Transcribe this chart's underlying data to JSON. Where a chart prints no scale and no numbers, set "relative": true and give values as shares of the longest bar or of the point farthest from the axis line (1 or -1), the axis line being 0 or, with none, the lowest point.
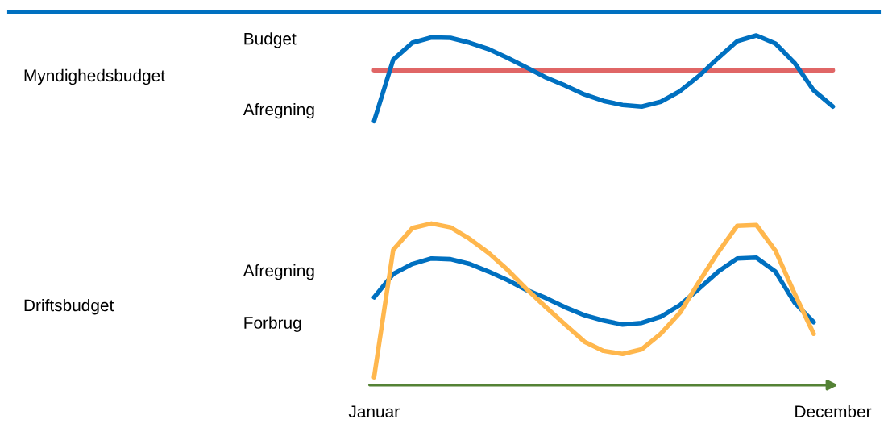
{
  "chart_data": [
    {
      "type": "line",
      "ylabel": "Myndighedsbudget",
      "relative": true,
      "tick_labels": false,
      "legend": false,
      "annotations": [
        "Budget",
        "Afregning"
      ],
      "categories": [
        null,
        null,
        null,
        null,
        null,
        null,
        null,
        null,
        null,
        null,
        null,
        null,
        null,
        null,
        null,
        null,
        null,
        null,
        null,
        null,
        null,
        null,
        null,
        null,
        null
      ],
      "series": [
        {
          "color": "#e06666",
          "values": [
            0.594,
            0.594,
            0.594,
            0.594,
            0.594,
            0.594,
            0.594,
            0.594,
            0.594,
            0.594,
            0.594,
            0.594,
            0.594,
            0.594,
            0.594,
            0.594,
            0.594,
            0.594,
            0.594,
            0.594,
            0.594,
            0.594,
            0.594,
            0.594,
            0.594
          ]
        },
        {
          "color": "#0070c0",
          "values": [
            0,
            0.717,
            0.915,
            0.976,
            0.972,
            0.915,
            0.84,
            0.736,
            0.623,
            0.509,
            0.415,
            0.311,
            0.236,
            0.189,
            0.17,
            0.226,
            0.349,
            0.528,
            0.736,
            0.934,
            1.0,
            0.906,
            0.679,
            0.358,
            0.17
          ]
        }
      ]
    },
    {
      "type": "line",
      "ylabel": "Driftsbudget",
      "relative": true,
      "tick_labels": "x",
      "legend": false,
      "annotations": [
        "Afregning",
        "Forbrug"
      ],
      "categories": [
        "Januar",
        null,
        null,
        null,
        null,
        null,
        null,
        null,
        null,
        null,
        null,
        null,
        null,
        null,
        null,
        null,
        null,
        null,
        null,
        null,
        null,
        null,
        null,
        null,
        "December"
      ],
      "series": [
        {
          "color": "#0070c0",
          "values": [
            0.52,
            0.672,
            0.737,
            0.773,
            0.768,
            0.737,
            0.687,
            0.631,
            0.566,
            0.515,
            0.455,
            0.404,
            0.369,
            0.343,
            0.354,
            0.394,
            0.47,
            0.576,
            0.687,
            0.773,
            0.778,
            0.687,
            0.485,
            0.359,
            null
          ]
        },
        {
          "color": "#ffb74d",
          "values": [
            0.0,
            0.828,
            0.97,
            1.0,
            0.975,
            0.9,
            0.808,
            0.697,
            0.571,
            0.455,
            0.343,
            0.232,
            0.172,
            0.152,
            0.182,
            0.283,
            0.419,
            0.621,
            0.813,
            0.985,
            0.99,
            0.823,
            0.545,
            0.283,
            null
          ]
        }
      ]
    }
  ]
}
